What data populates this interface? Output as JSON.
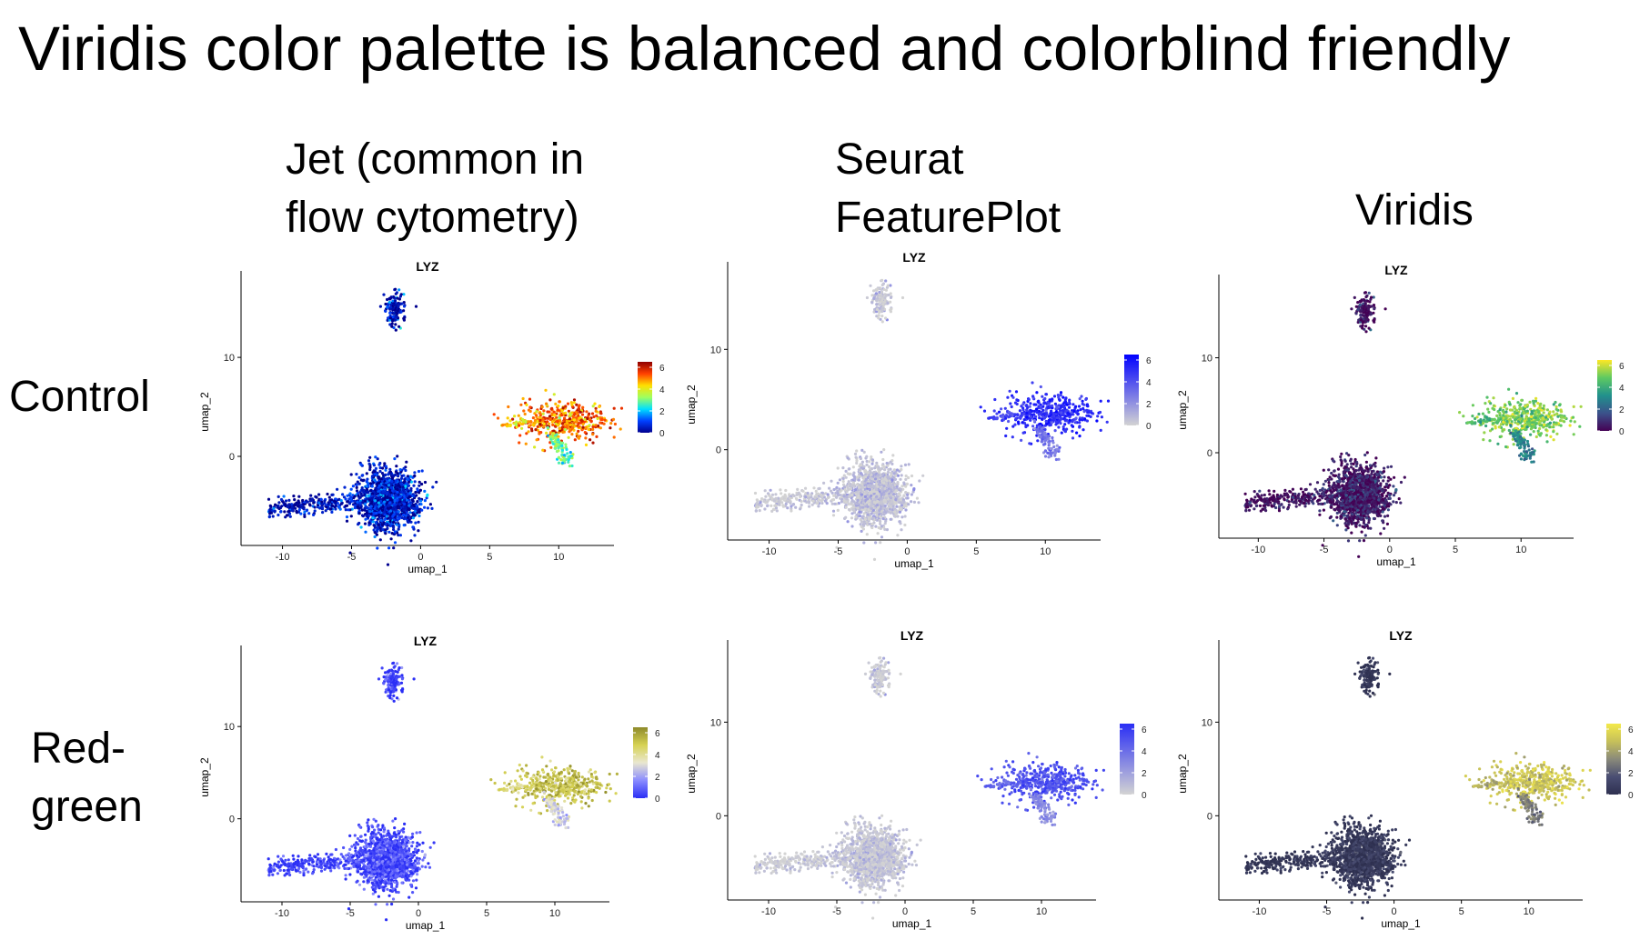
{
  "slide": {
    "title": "Viridis color palette is balanced and colorblind friendly",
    "columns": [
      {
        "lines": [
          "Jet (common in",
          "flow cytometry)"
        ]
      },
      {
        "lines": [
          "Seurat",
          "FeaturePlot"
        ]
      },
      {
        "lines": [
          "Viridis"
        ]
      }
    ],
    "rows": [
      {
        "lines": [
          "Control"
        ]
      },
      {
        "lines": [
          "Red-",
          "green"
        ]
      }
    ]
  },
  "chart_data": [
    {
      "type": "scatter",
      "title": "LYZ",
      "xlabel": "umap_1",
      "ylabel": "umap_2",
      "xticks": [
        -10,
        -5,
        0,
        5,
        10
      ],
      "yticks": [
        0,
        10
      ],
      "xlim": [
        -13,
        14
      ],
      "ylim": [
        -9,
        18
      ],
      "legend_ticks": [
        0,
        2,
        4,
        6
      ],
      "legend_range": [
        0,
        6.5
      ],
      "palette": "jet",
      "colors": [
        "#00008f",
        "#0040ff",
        "#00dfff",
        "#9fff5f",
        "#ffdf00",
        "#ff4000",
        "#8f0000"
      ],
      "clusters": [
        {
          "name": "top cluster",
          "x_center": -1.9,
          "y_center": 14.8,
          "x_spread": 0.9,
          "y_spread": 2.0,
          "lyz_level": 0.4
        },
        {
          "name": "main cluster",
          "x_center": -2.3,
          "y_center": -4.4,
          "x_spread": 2.3,
          "y_spread": 3.4,
          "lyz_level": 0.5
        },
        {
          "name": "tail",
          "x_from": -11,
          "x_to": -4,
          "y_at": -5.3,
          "lyz_level": 0.3
        },
        {
          "name": "right cluster",
          "x_center": 10.2,
          "y_center": 3.6,
          "x_spread": 2.3,
          "y_spread": 1.8,
          "lyz_level": 5.2
        }
      ]
    },
    {
      "type": "scatter",
      "title": "LYZ",
      "xlabel": "umap_1",
      "ylabel": "umap_2",
      "xticks": [
        -10,
        -5,
        0,
        5,
        10
      ],
      "yticks": [
        0,
        10
      ],
      "xlim": [
        -13,
        14
      ],
      "ylim": [
        -9,
        18
      ],
      "legend_ticks": [
        0,
        2,
        4,
        6
      ],
      "legend_range": [
        0,
        6.5
      ],
      "palette": "seurat",
      "colors": [
        "#d3d3d3",
        "#0000ff"
      ],
      "clusters": [
        {
          "name": "top cluster",
          "x_center": -1.9,
          "y_center": 14.8,
          "x_spread": 0.9,
          "y_spread": 2.0,
          "lyz_level": 0.4
        },
        {
          "name": "main cluster",
          "x_center": -2.3,
          "y_center": -4.4,
          "x_spread": 2.3,
          "y_spread": 3.4,
          "lyz_level": 0.5
        },
        {
          "name": "tail",
          "x_from": -11,
          "x_to": -4,
          "y_at": -5.3,
          "lyz_level": 0.3
        },
        {
          "name": "right cluster",
          "x_center": 10.2,
          "y_center": 3.6,
          "x_spread": 2.3,
          "y_spread": 1.8,
          "lyz_level": 5.2
        }
      ]
    },
    {
      "type": "scatter",
      "title": "LYZ",
      "xlabel": "umap_1",
      "ylabel": "umap_2",
      "xticks": [
        -10,
        -5,
        0,
        5,
        10
      ],
      "yticks": [
        0,
        10
      ],
      "xlim": [
        -13,
        14
      ],
      "ylim": [
        -9,
        18
      ],
      "legend_ticks": [
        0,
        2,
        4,
        6
      ],
      "legend_range": [
        0,
        6.5
      ],
      "palette": "viridis",
      "colors": [
        "#440154",
        "#3b528b",
        "#21918c",
        "#5ec962",
        "#fde725"
      ],
      "clusters": [
        {
          "name": "top cluster",
          "x_center": -1.9,
          "y_center": 14.8,
          "x_spread": 0.9,
          "y_spread": 2.0,
          "lyz_level": 0.4
        },
        {
          "name": "main cluster",
          "x_center": -2.3,
          "y_center": -4.4,
          "x_spread": 2.3,
          "y_spread": 3.4,
          "lyz_level": 0.5
        },
        {
          "name": "tail",
          "x_from": -11,
          "x_to": -4,
          "y_at": -5.3,
          "lyz_level": 0.3
        },
        {
          "name": "right cluster",
          "x_center": 10.2,
          "y_center": 3.6,
          "x_spread": 2.3,
          "y_spread": 1.8,
          "lyz_level": 5.2
        }
      ]
    },
    {
      "type": "scatter",
      "title": "LYZ",
      "xlabel": "umap_1",
      "ylabel": "umap_2",
      "xticks": [
        -10,
        -5,
        0,
        5,
        10
      ],
      "yticks": [
        0,
        10
      ],
      "xlim": [
        -13,
        14
      ],
      "ylim": [
        -9,
        18
      ],
      "legend_ticks": [
        0,
        2,
        4,
        6
      ],
      "legend_range": [
        0,
        6.5
      ],
      "palette": "jet, red-green colorblind simulation",
      "colors": [
        "#2a2ef5",
        "#8a8cff",
        "#e9e7d0",
        "#d6d253",
        "#8e8a2a"
      ],
      "clusters": [
        {
          "name": "top cluster",
          "x_center": -1.9,
          "y_center": 14.8,
          "x_spread": 0.9,
          "y_spread": 2.0,
          "lyz_level": 0.4
        },
        {
          "name": "main cluster",
          "x_center": -2.3,
          "y_center": -4.4,
          "x_spread": 2.3,
          "y_spread": 3.4,
          "lyz_level": 0.5
        },
        {
          "name": "tail",
          "x_from": -11,
          "x_to": -4,
          "y_at": -5.3,
          "lyz_level": 0.3
        },
        {
          "name": "right cluster",
          "x_center": 10.2,
          "y_center": 3.6,
          "x_spread": 2.3,
          "y_spread": 1.8,
          "lyz_level": 5.2
        }
      ]
    },
    {
      "type": "scatter",
      "title": "LYZ",
      "xlabel": "umap_1",
      "ylabel": "umap_2",
      "xticks": [
        -10,
        -5,
        0,
        5,
        10
      ],
      "yticks": [
        0,
        10
      ],
      "xlim": [
        -13,
        14
      ],
      "ylim": [
        -9,
        18
      ],
      "legend_ticks": [
        0,
        2,
        4,
        6
      ],
      "legend_range": [
        0,
        6.5
      ],
      "palette": "seurat, red-green colorblind simulation",
      "colors": [
        "#d3d3d3",
        "#2a2ef5"
      ],
      "clusters": [
        {
          "name": "top cluster",
          "x_center": -1.9,
          "y_center": 14.8,
          "x_spread": 0.9,
          "y_spread": 2.0,
          "lyz_level": 0.4
        },
        {
          "name": "main cluster",
          "x_center": -2.3,
          "y_center": -4.4,
          "x_spread": 2.3,
          "y_spread": 3.4,
          "lyz_level": 0.5
        },
        {
          "name": "tail",
          "x_from": -11,
          "x_to": -4,
          "y_at": -5.3,
          "lyz_level": 0.3
        },
        {
          "name": "right cluster",
          "x_center": 10.2,
          "y_center": 3.6,
          "x_spread": 2.3,
          "y_spread": 1.8,
          "lyz_level": 5.2
        }
      ]
    },
    {
      "type": "scatter",
      "title": "LYZ",
      "xlabel": "umap_1",
      "ylabel": "umap_2",
      "xticks": [
        -10,
        -5,
        0,
        5,
        10
      ],
      "yticks": [
        0,
        10
      ],
      "xlim": [
        -13,
        14
      ],
      "ylim": [
        -9,
        18
      ],
      "legend_ticks": [
        0,
        2,
        4,
        6
      ],
      "legend_range": [
        0,
        6.5
      ],
      "palette": "viridis, red-green colorblind simulation",
      "colors": [
        "#2e3050",
        "#4a4e73",
        "#8a8a7a",
        "#c6c05a",
        "#f3e94a"
      ],
      "clusters": [
        {
          "name": "top cluster",
          "x_center": -1.9,
          "y_center": 14.8,
          "x_spread": 0.9,
          "y_spread": 2.0,
          "lyz_level": 0.4
        },
        {
          "name": "main cluster",
          "x_center": -2.3,
          "y_center": -4.4,
          "x_spread": 2.3,
          "y_spread": 3.4,
          "lyz_level": 0.5
        },
        {
          "name": "tail",
          "x_from": -11,
          "x_to": -4,
          "y_at": -5.3,
          "lyz_level": 0.3
        },
        {
          "name": "right cluster",
          "x_center": 10.2,
          "y_center": 3.6,
          "x_spread": 2.3,
          "y_spread": 1.8,
          "lyz_level": 5.2
        }
      ]
    }
  ]
}
